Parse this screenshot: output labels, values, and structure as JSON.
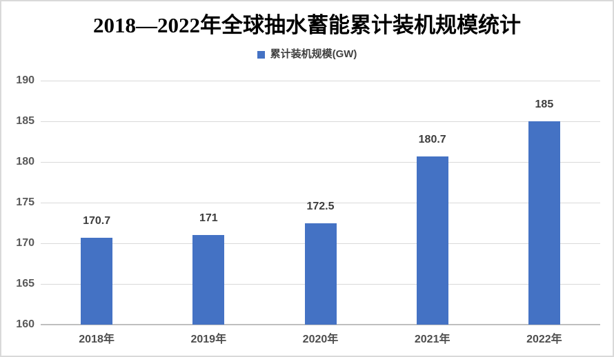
{
  "page": {
    "background_color": "#ffffff",
    "frame_border_color": "#d9d9d9"
  },
  "chart_data": {
    "type": "bar",
    "title": "2018—2022年全球抽水蓄能累计装机规模统计",
    "legend_label": "累计装机规模(GW)",
    "legend_position": "top",
    "categories": [
      "2018年",
      "2019年",
      "2020年",
      "2021年",
      "2022年"
    ],
    "series": [
      {
        "name": "累计装机规模(GW)",
        "values": [
          170.7,
          171,
          172.5,
          180.7,
          185
        ],
        "color": "#4472C4"
      }
    ],
    "data_labels": [
      "170.7",
      "171",
      "172.5",
      "180.7",
      "185"
    ],
    "xlabel": "",
    "ylabel": "",
    "ylim": [
      160,
      190
    ],
    "ytick_interval": 5,
    "yticks": [
      "160",
      "165",
      "170",
      "175",
      "180",
      "185",
      "190"
    ],
    "grid": true,
    "colors": {
      "bar": "#4472C4",
      "gridline": "#d9d9d9",
      "axis_line": "#bfbfbf",
      "y_tick_label": "#595959",
      "x_tick_label": "#4d4d4d",
      "data_label": "#3d3d3d",
      "title": "#000000",
      "legend_text": "#404040"
    }
  }
}
